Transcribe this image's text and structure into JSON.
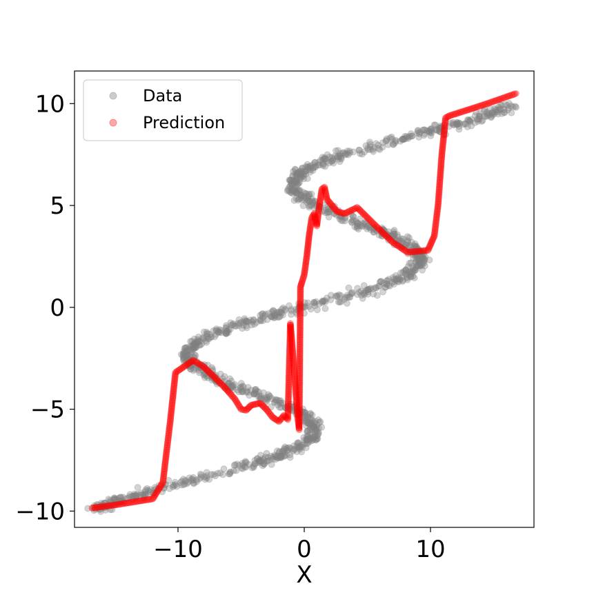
{
  "chart_data": {
    "type": "scatter",
    "xlabel": "X",
    "ylabel": "",
    "xlim": [
      -18.2,
      18.2
    ],
    "ylim": [
      -10.8,
      11.6
    ],
    "xticks": [
      -10,
      0,
      10
    ],
    "yticks": [
      -10,
      -5,
      0,
      5,
      10
    ],
    "xtick_labels": [
      "−10",
      "0",
      "10"
    ],
    "ytick_labels": [
      "−10",
      "−5",
      "0",
      "5",
      "10"
    ],
    "legend": {
      "placement": "top-left",
      "entries": [
        {
          "label": "Data",
          "color": "#808080"
        },
        {
          "label": "Prediction",
          "color": "#ff0000"
        }
      ]
    },
    "grid": false,
    "series": [
      {
        "name": "Data",
        "color": "#808080",
        "alpha": 0.35,
        "description": "noisy inverted sine curve, x = y + 7*sin(0.75*y) + noise, y from -10 to 10",
        "x_range": [
          -16,
          17
        ],
        "y_range": [
          -10,
          10
        ]
      },
      {
        "name": "Prediction",
        "color": "#ff0000",
        "alpha": 0.35,
        "x": [
          -16.8,
          -15,
          -13.5,
          -12,
          -11.2,
          -10.6,
          -10.2,
          -9.5,
          -8.8,
          -8,
          -7,
          -6.2,
          -5.5,
          -5,
          -4.6,
          -4.2,
          -3.5,
          -3,
          -2.5,
          -2,
          -1.6,
          -1.3,
          -1.1,
          -1.0,
          -0.9,
          -0.8,
          -0.7,
          -0.6,
          -0.5,
          -0.4,
          -0.3,
          -0.2,
          0,
          0.2,
          0.4,
          0.6,
          0.8,
          1.0,
          1.2,
          1.4,
          1.6,
          1.8,
          2.2,
          2.6,
          3.2,
          4.2,
          5.5,
          7,
          8.2,
          9.8,
          10.3,
          10.6,
          10.9,
          11.2,
          11.5,
          13,
          14.5,
          16.8
        ],
        "y": [
          -9.85,
          -9.7,
          -9.55,
          -9.4,
          -8.6,
          -5.5,
          -3.2,
          -2.9,
          -2.6,
          -2.9,
          -3.5,
          -4.0,
          -4.5,
          -5.0,
          -5.05,
          -4.8,
          -4.7,
          -5.0,
          -5.4,
          -5.6,
          -5.3,
          -5.5,
          -0.8,
          -1.5,
          -2.3,
          -3.1,
          -3.9,
          -4.7,
          -5.5,
          -6.0,
          1.0,
          1.2,
          1.6,
          2.5,
          3.6,
          4.4,
          4.6,
          4.0,
          5.0,
          5.8,
          5.9,
          5.3,
          5.0,
          4.7,
          4.6,
          4.9,
          4.1,
          3.2,
          2.7,
          2.8,
          3.5,
          5.0,
          7.5,
          9.3,
          9.4,
          9.7,
          10.0,
          10.5
        ]
      }
    ]
  }
}
